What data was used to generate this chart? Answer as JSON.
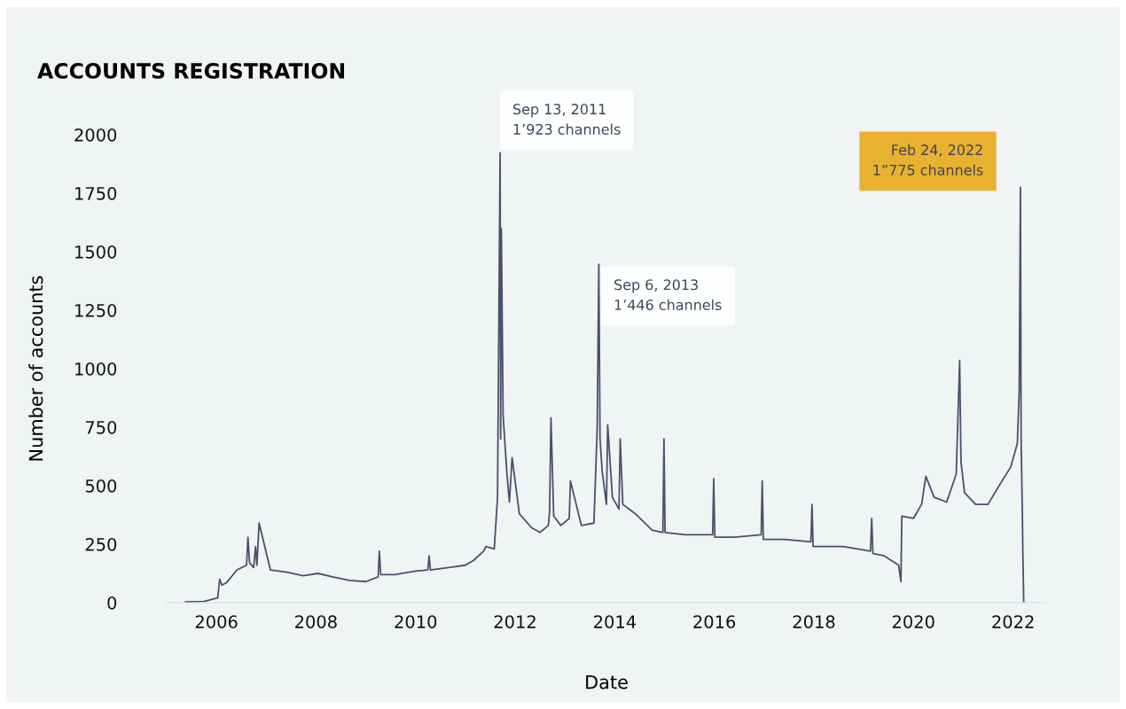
{
  "chart_data": {
    "type": "line",
    "title": "ACCOUNTS REGISTRATION",
    "xlabel": "Date",
    "ylabel": "Number of accounts",
    "x": [
      "2005-05-20",
      "2005-10-01",
      "2006-01-10",
      "2006-01-25",
      "2006-02-10",
      "2006-03-15",
      "2006-06-01",
      "2006-08-10",
      "2006-08-20",
      "2006-09-01",
      "2006-10-01",
      "2006-10-15",
      "2006-10-25",
      "2006-11-10",
      "2007-02-01",
      "2007-06-01",
      "2007-10-01",
      "2008-01-15",
      "2008-05-01",
      "2008-09-01",
      "2009-01-01",
      "2009-04-01",
      "2009-04-10",
      "2009-04-20",
      "2009-08-01",
      "2010-01-01",
      "2010-04-01",
      "2010-04-10",
      "2010-04-20",
      "2010-09-01",
      "2011-01-01",
      "2011-03-01",
      "2011-05-15",
      "2011-06-01",
      "2011-08-01",
      "2011-08-25",
      "2011-09-13",
      "2011-09-17",
      "2011-09-22",
      "2011-10-05",
      "2011-11-01",
      "2011-11-20",
      "2011-12-10",
      "2012-02-01",
      "2012-05-01",
      "2012-07-01",
      "2012-09-01",
      "2012-09-10",
      "2012-09-20",
      "2012-10-10",
      "2012-12-01",
      "2013-02-01",
      "2013-02-10",
      "2013-05-01",
      "2013-08-01",
      "2013-08-25",
      "2013-09-06",
      "2013-09-15",
      "2013-10-01",
      "2013-11-01",
      "2013-11-10",
      "2013-12-15",
      "2014-02-01",
      "2014-02-10",
      "2014-03-01",
      "2014-06-01",
      "2014-10-01",
      "2014-12-20",
      "2014-12-28",
      "2015-01-05",
      "2015-06-01",
      "2015-12-20",
      "2015-12-28",
      "2016-01-05",
      "2016-06-01",
      "2016-12-10",
      "2016-12-18",
      "2016-12-26",
      "2017-06-01",
      "2017-12-10",
      "2017-12-18",
      "2017-12-26",
      "2018-08-01",
      "2019-02-20",
      "2019-03-01",
      "2019-03-10",
      "2019-06-01",
      "2019-09-15",
      "2019-10-01",
      "2019-10-08",
      "2020-01-01",
      "2020-03-01",
      "2020-04-01",
      "2020-06-01",
      "2020-09-01",
      "2020-11-10",
      "2020-12-05",
      "2020-12-15",
      "2021-01-10",
      "2021-04-01",
      "2021-07-01",
      "2021-10-01",
      "2021-12-15",
      "2022-02-01",
      "2022-02-15",
      "2022-02-24",
      "2022-03-01",
      "2022-03-10",
      "2022-03-14",
      "2022-03-20"
    ],
    "series": [
      {
        "color": "#47536b",
        "values": [
          3,
          5,
          20,
          100,
          75,
          85,
          140,
          160,
          280,
          170,
          150,
          240,
          160,
          340,
          140,
          130,
          115,
          125,
          110,
          95,
          90,
          110,
          220,
          120,
          120,
          135,
          140,
          200,
          140,
          150,
          160,
          180,
          220,
          240,
          230,
          450,
          1923,
          700,
          1600,
          800,
          560,
          430,
          620,
          380,
          320,
          300,
          330,
          390,
          790,
          370,
          330,
          360,
          520,
          330,
          340,
          740,
          1446,
          700,
          560,
          420,
          760,
          450,
          400,
          700,
          420,
          380,
          310,
          300,
          700,
          300,
          290,
          290,
          530,
          280,
          280,
          290,
          520,
          270,
          270,
          260,
          420,
          240,
          240,
          220,
          360,
          210,
          200,
          160,
          90,
          370,
          360,
          420,
          540,
          450,
          430,
          550,
          1035,
          600,
          470,
          420,
          420,
          510,
          580,
          680,
          900,
          1775,
          700,
          380,
          200,
          0
        ]
      }
    ],
    "xlim": [
      "2005-01-01",
      "2022-09-01"
    ],
    "xticks": [
      "2006",
      "2008",
      "2010",
      "2012",
      "2014",
      "2016",
      "2018",
      "2020",
      "2022"
    ],
    "ylim": [
      0,
      2000
    ],
    "yticks": [
      0,
      250,
      500,
      750,
      1000,
      1250,
      1500,
      1750,
      2000
    ],
    "grid": false,
    "legend": false,
    "annotations": [
      {
        "text": "Sep 13, 2011\n1’923 channels",
        "x": "2011-09-13",
        "y": 1923
      },
      {
        "text": "Sep 6, 2013\n1’446 channels",
        "x": "2013-09-06",
        "y": 1446
      },
      {
        "text": "Feb 24, 2022\n1”775 channels",
        "x": "2022-02-24",
        "y": 1775
      }
    ]
  }
}
